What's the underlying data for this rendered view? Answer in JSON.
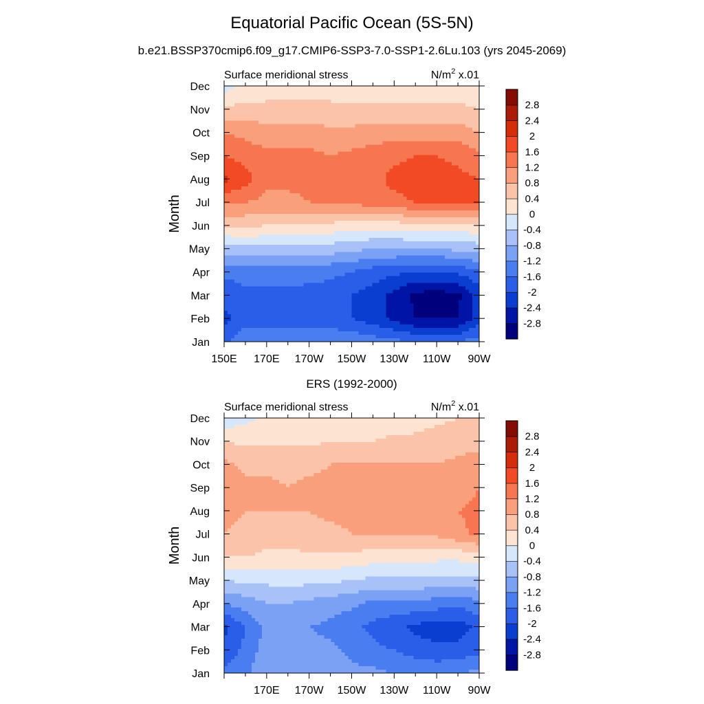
{
  "figure": {
    "title": "Equatorial Pacific Ocean (5S-5N)",
    "subtitle": "b.e21.BSSP370cmip6.f09_g17.CMIP6-SSP3-7.0-SSP1-2.6Lu.103 (yrs 2045-2069)"
  },
  "colorbar": {
    "levels": [
      -2.8,
      -2.4,
      -2,
      -1.6,
      -1.2,
      -0.8,
      -0.4,
      0,
      0.4,
      0.8,
      1.2,
      1.6,
      2,
      2.4,
      2.8
    ],
    "level_labels": [
      "2.8",
      "2.4",
      "2",
      "1.6",
      "1.2",
      "0.8",
      "0.4",
      "0",
      "-0.4",
      "-0.8",
      "-1.2",
      "-1.6",
      "-2",
      "-2.4",
      "-2.8"
    ],
    "colors": [
      "#00007d",
      "#0014a6",
      "#0a3ed1",
      "#2a5ee8",
      "#4a7ef0",
      "#7ba1f5",
      "#a8c2f7",
      "#d6e6fb",
      "#fde3d2",
      "#fbc3a8",
      "#f99f7c",
      "#f67650",
      "#f24a25",
      "#d32d0a",
      "#ab1b05",
      "#850c02"
    ]
  },
  "chart_data": [
    {
      "type": "heatmap",
      "panel_title": "",
      "left_label": "Surface meridional stress",
      "right_label": "N/m",
      "right_label_sup": "2",
      "right_label_suffix": " x.01",
      "ylabel": "Month",
      "months": [
        "Jan",
        "Feb",
        "Mar",
        "Apr",
        "May",
        "Jun",
        "Jul",
        "Aug",
        "Sep",
        "Oct",
        "Nov",
        "Dec"
      ],
      "x_ticklabels": [
        "150E",
        "170E",
        "170W",
        "150W",
        "130W",
        "110W",
        "90W"
      ],
      "xlim_deg_east": [
        150,
        270
      ],
      "x": [
        150,
        160,
        170,
        180,
        190,
        200,
        210,
        220,
        230,
        240,
        250,
        260,
        270
      ],
      "values": [
        [
          -1.7,
          -1.3,
          -1.2,
          -1.2,
          -1.2,
          -1.2,
          -1.3,
          -1.4,
          -1.5,
          -1.6,
          -1.7,
          -1.6,
          -1.4
        ],
        [
          -2.1,
          -1.8,
          -1.8,
          -1.8,
          -1.9,
          -1.9,
          -2.0,
          -2.2,
          -2.5,
          -2.8,
          -2.8,
          -2.8,
          -2.2
        ],
        [
          -1.9,
          -1.7,
          -1.7,
          -1.7,
          -1.8,
          -1.8,
          -2.0,
          -2.2,
          -2.5,
          -2.9,
          -3.0,
          -2.9,
          -2.2
        ],
        [
          -1.5,
          -1.4,
          -1.4,
          -1.4,
          -1.4,
          -1.5,
          -1.6,
          -1.8,
          -1.9,
          -2.0,
          -2.0,
          -1.9,
          -1.7
        ],
        [
          -0.6,
          -0.5,
          -0.5,
          -0.5,
          -0.6,
          -0.6,
          -0.7,
          -0.8,
          -0.8,
          -0.8,
          -0.8,
          -0.7,
          -0.6
        ],
        [
          0.5,
          0.5,
          0.4,
          0.4,
          0.3,
          0.3,
          0.2,
          0.2,
          0.2,
          0.3,
          0.3,
          0.3,
          0.3
        ],
        [
          1.3,
          1.2,
          1.1,
          1.1,
          1.2,
          1.2,
          1.3,
          1.4,
          1.5,
          1.6,
          1.7,
          1.7,
          1.7
        ],
        [
          2.1,
          1.8,
          1.3,
          1.3,
          1.3,
          1.3,
          1.4,
          1.5,
          1.7,
          1.8,
          1.8,
          1.7,
          1.6
        ],
        [
          1.6,
          1.4,
          1.3,
          1.3,
          1.3,
          1.2,
          1.3,
          1.4,
          1.5,
          1.6,
          1.6,
          1.5,
          1.3
        ],
        [
          1.2,
          1.1,
          1.0,
          1.0,
          1.0,
          0.9,
          0.9,
          1.0,
          1.0,
          1.0,
          1.0,
          1.0,
          0.8
        ],
        [
          0.5,
          0.5,
          0.5,
          0.5,
          0.5,
          0.5,
          0.5,
          0.5,
          0.5,
          0.5,
          0.5,
          0.5,
          0.4
        ],
        [
          -0.2,
          0.1,
          0.2,
          0.2,
          0.2,
          0.2,
          0.1,
          0.1,
          0.1,
          0.1,
          0.1,
          0.1,
          0.1
        ]
      ]
    },
    {
      "type": "heatmap",
      "panel_title": "ERS (1992-2000)",
      "left_label": "Surface meridional stress",
      "right_label": "N/m",
      "right_label_sup": "2",
      "right_label_suffix": " x.01",
      "ylabel": "Month",
      "months": [
        "Jan",
        "Feb",
        "Mar",
        "Apr",
        "May",
        "Jun",
        "Jul",
        "Aug",
        "Sep",
        "Oct",
        "Nov",
        "Dec"
      ],
      "x_ticklabels": [
        "",
        "170E",
        "170W",
        "150W",
        "130W",
        "110W",
        "90W"
      ],
      "xlim_deg_east": [
        150,
        270
      ],
      "x": [
        150,
        160,
        170,
        180,
        190,
        200,
        210,
        220,
        230,
        240,
        250,
        260,
        270
      ],
      "values": [
        [
          -1.5,
          -1.3,
          -0.8,
          -0.9,
          -1.0,
          -1.0,
          -1.1,
          -1.1,
          -1.2,
          -1.2,
          -1.3,
          -1.2,
          -1.1
        ],
        [
          -1.9,
          -1.5,
          -1.0,
          -1.0,
          -1.1,
          -1.1,
          -1.3,
          -1.5,
          -1.6,
          -1.8,
          -1.9,
          -1.9,
          -1.7
        ],
        [
          -2.1,
          -1.6,
          -1.1,
          -1.1,
          -1.2,
          -1.3,
          -1.5,
          -1.7,
          -1.9,
          -2.1,
          -2.2,
          -2.2,
          -1.9
        ],
        [
          -1.2,
          -1.0,
          -0.8,
          -0.8,
          -0.9,
          -1.0,
          -1.1,
          -1.3,
          -1.3,
          -1.3,
          -1.4,
          -1.5,
          -1.3
        ],
        [
          -0.4,
          -0.3,
          -0.3,
          -0.2,
          -0.3,
          -0.3,
          -0.4,
          -0.5,
          -0.5,
          -0.5,
          -0.5,
          -0.5,
          -0.5
        ],
        [
          0.4,
          0.4,
          0.3,
          0.3,
          0.3,
          0.3,
          0.3,
          0.2,
          0.2,
          0.2,
          0.1,
          0.1,
          0.2
        ],
        [
          0.8,
          0.7,
          0.6,
          0.6,
          0.7,
          0.7,
          0.8,
          0.8,
          0.8,
          0.8,
          0.9,
          1.1,
          1.3
        ],
        [
          0.9,
          0.8,
          0.8,
          0.8,
          0.8,
          0.9,
          0.9,
          0.9,
          0.9,
          0.9,
          1.0,
          1.2,
          1.3
        ],
        [
          1.2,
          0.9,
          0.9,
          0.8,
          0.9,
          0.9,
          0.9,
          0.9,
          1.0,
          0.9,
          0.9,
          1.0,
          1.2
        ],
        [
          0.9,
          0.7,
          0.7,
          0.7,
          0.7,
          0.8,
          0.8,
          0.8,
          0.8,
          0.8,
          0.8,
          0.9,
          1.1
        ],
        [
          0.4,
          0.3,
          0.3,
          0.3,
          0.3,
          0.4,
          0.4,
          0.4,
          0.5,
          0.5,
          0.6,
          0.6,
          0.6
        ],
        [
          -0.3,
          -0.1,
          0.1,
          0.1,
          0.1,
          0.1,
          0.0,
          0.1,
          0.1,
          0.2,
          0.3,
          0.4,
          0.4
        ]
      ]
    }
  ]
}
